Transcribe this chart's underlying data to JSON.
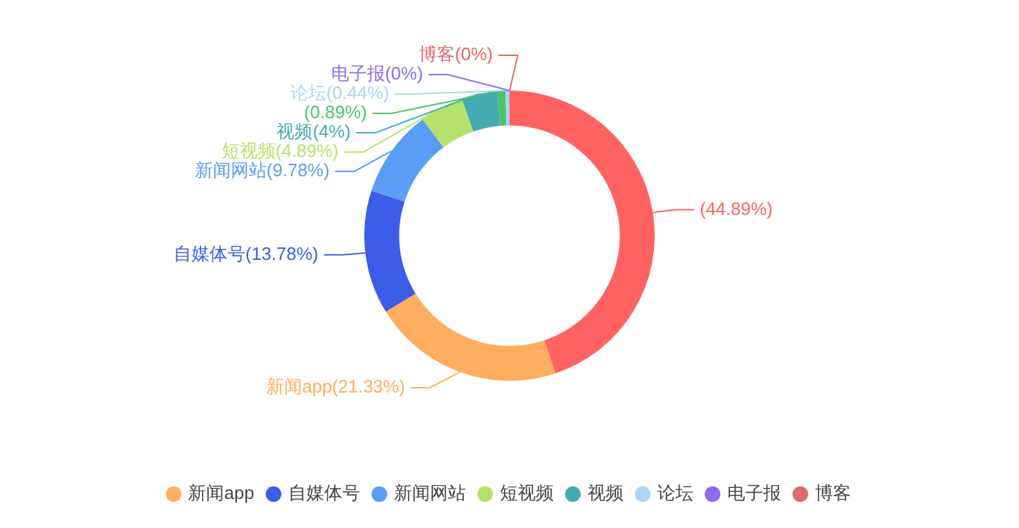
{
  "chart_data": {
    "type": "donut",
    "categories": [
      null,
      "新闻app",
      "自媒体号",
      "新闻网站",
      "短视频",
      "视频",
      null,
      "论坛",
      "电子报",
      "博客"
    ],
    "values": [
      44.89,
      21.33,
      13.78,
      9.78,
      4.89,
      4,
      0.89,
      0.44,
      0,
      0
    ],
    "colors": [
      "#ff6361",
      "#ffad5f",
      "#3b5de7",
      "#5b9cf4",
      "#b5e26a",
      "#46aab3",
      "#4cc36b",
      "#a9d4f7",
      "#8c6cf0",
      "#e06a6a"
    ],
    "value_labels": [
      "(44.89%)",
      "(21.33%)",
      "(13.78%)",
      "(9.78%)",
      "(4.89%)",
      "(4%)",
      "(0.89%)",
      "(0.44%)",
      "(0%)",
      "(0%)"
    ],
    "legend": "bottom"
  }
}
